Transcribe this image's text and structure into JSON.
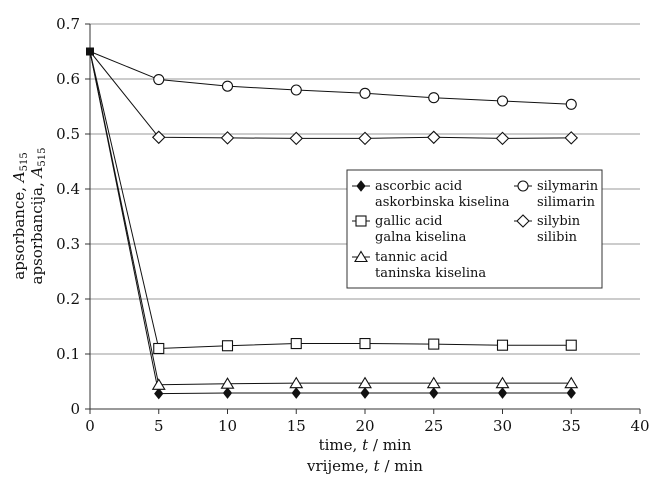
{
  "chart_data": {
    "type": "line",
    "x": [
      0,
      5,
      10,
      15,
      20,
      25,
      30,
      35
    ],
    "xlim": [
      0,
      40
    ],
    "ylim": [
      0,
      0.7
    ],
    "xticks": [
      "0",
      "5",
      "10",
      "15",
      "20",
      "25",
      "30",
      "35",
      "40"
    ],
    "yticks": [
      "0",
      "0.1",
      "0.2",
      "0.3",
      "0.4",
      "0.5",
      "0.6",
      "0.7"
    ],
    "xlabel_en": "time, t / min",
    "xlabel_hr": "vrijeme, t / min",
    "ylabel_en": "apsorbance, A515",
    "ylabel_hr": "apsorbancija, A515",
    "grid": "horizontal",
    "legend_position": "right-center",
    "series": [
      {
        "name": "ascorbic acid",
        "name_hr": "askorbinska kiselina",
        "marker": "filled-diamond",
        "values": [
          0.65,
          0.028,
          0.029,
          0.029,
          0.029,
          0.029,
          0.029,
          0.029
        ]
      },
      {
        "name": "gallic acid",
        "name_hr": "galna kiselina",
        "marker": "square",
        "values": [
          0.65,
          0.11,
          0.115,
          0.119,
          0.119,
          0.118,
          0.116,
          0.116
        ]
      },
      {
        "name": "tannic acid",
        "name_hr": "taninska kiselina",
        "marker": "triangle",
        "values": [
          0.65,
          0.044,
          0.046,
          0.047,
          0.047,
          0.047,
          0.047,
          0.047
        ]
      },
      {
        "name": "silymarin",
        "name_hr": "silimarin",
        "marker": "circle",
        "values": [
          0.65,
          0.599,
          0.587,
          0.58,
          0.574,
          0.566,
          0.56,
          0.554
        ]
      },
      {
        "name": "silybin",
        "name_hr": "silibin",
        "marker": "diamond",
        "values": [
          0.65,
          0.494,
          0.493,
          0.492,
          0.492,
          0.494,
          0.492,
          0.493
        ]
      }
    ]
  }
}
